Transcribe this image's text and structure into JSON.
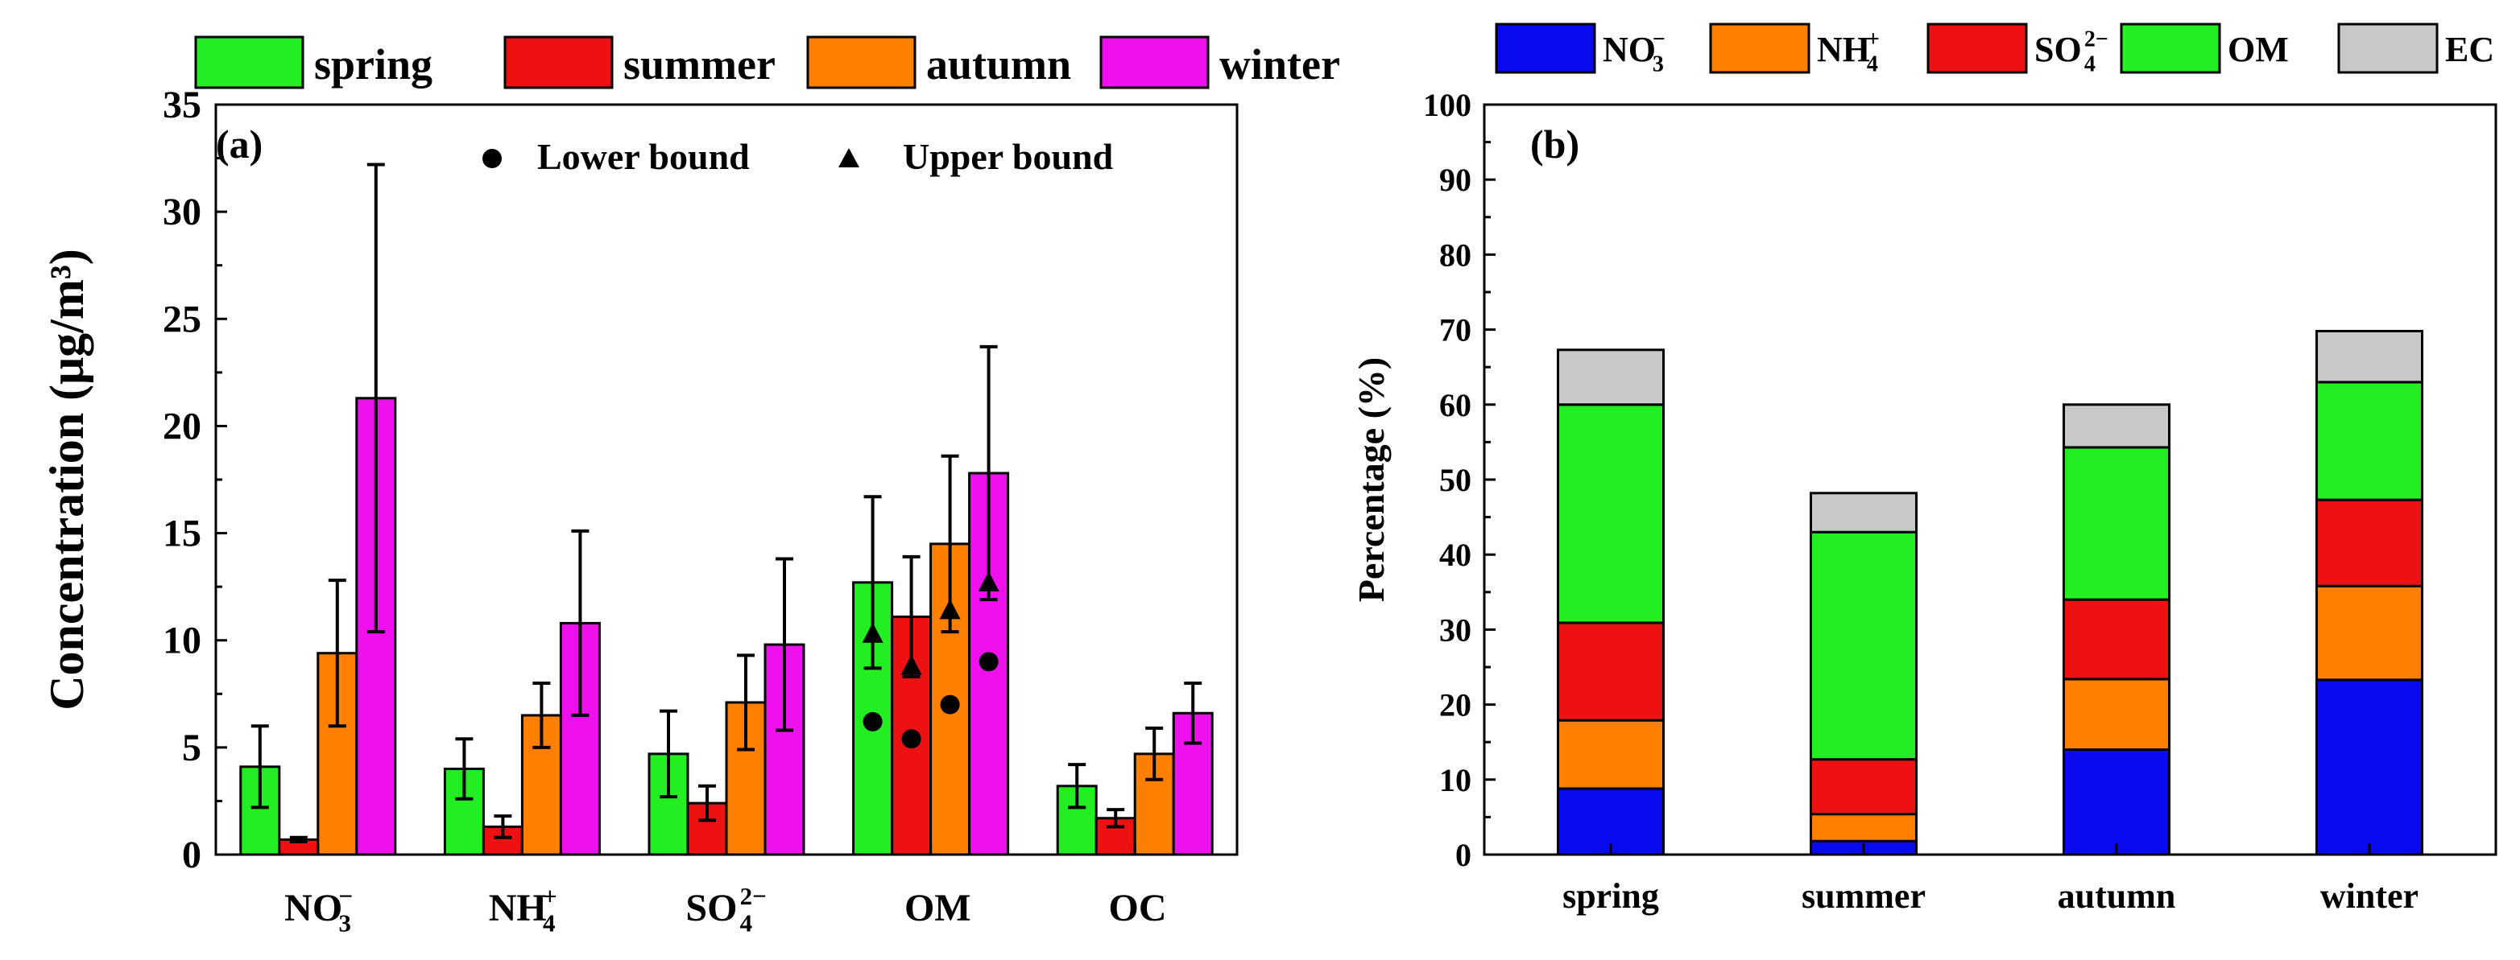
{
  "chart_data": [
    {
      "panel": "(a)",
      "type": "bar",
      "ylabel": "Concentration",
      "ylabel_unit": "(μg/m³)",
      "ylim": [
        0,
        35
      ],
      "yticks": [
        "0",
        "5",
        "10",
        "15",
        "20",
        "25",
        "30",
        "35"
      ],
      "ytick_values": [
        0,
        5,
        10,
        15,
        20,
        25,
        30,
        35
      ],
      "categories": [
        {
          "base": "NO",
          "sub": "3",
          "sup": "−"
        },
        {
          "base": "NH",
          "sub": "4",
          "sup": "+"
        },
        {
          "base": "SO",
          "sub": "4",
          "sup": "2−"
        },
        {
          "base": "OM",
          "sub": "",
          "sup": ""
        },
        {
          "base": "OC",
          "sub": "",
          "sup": ""
        }
      ],
      "series": [
        {
          "name": "spring",
          "color": "#22ee22",
          "values": [
            4.1,
            4.0,
            4.7,
            12.7,
            3.2
          ],
          "errors": [
            1.9,
            1.4,
            2.0,
            4.0,
            1.0
          ]
        },
        {
          "name": "summer",
          "color": "#ee1111",
          "values": [
            0.7,
            1.3,
            2.4,
            11.1,
            1.7
          ],
          "errors": [
            0.1,
            0.5,
            0.8,
            2.8,
            0.4
          ]
        },
        {
          "name": "autumn",
          "color": "#ff8000",
          "values": [
            9.4,
            6.5,
            7.1,
            14.5,
            4.7
          ],
          "errors": [
            3.4,
            1.5,
            2.2,
            4.1,
            1.2
          ]
        },
        {
          "name": "winter",
          "color": "#ee11ee",
          "values": [
            21.3,
            10.8,
            9.8,
            17.8,
            6.6
          ],
          "errors": [
            10.9,
            4.3,
            4.0,
            5.9,
            1.4
          ]
        }
      ],
      "bounds": {
        "lower": {
          "label": "Lower bound",
          "category": "OM",
          "values": [
            6.2,
            5.4,
            7.0,
            9.0
          ]
        },
        "upper": {
          "label": "Upper bound",
          "category": "OM",
          "values": [
            10.3,
            8.8,
            11.4,
            12.7
          ]
        }
      },
      "legend_position": "top"
    },
    {
      "panel": "(b)",
      "type": "stacked-bar",
      "ylabel": "Percentage (%)",
      "ylim": [
        0,
        100
      ],
      "yticks": [
        "0",
        "10",
        "20",
        "30",
        "40",
        "50",
        "60",
        "70",
        "80",
        "90",
        "100"
      ],
      "ytick_values": [
        0,
        10,
        20,
        30,
        40,
        50,
        60,
        70,
        80,
        90,
        100
      ],
      "categories": [
        "spring",
        "summer",
        "autumn",
        "winter"
      ],
      "series": [
        {
          "name": {
            "base": "NO",
            "sub": "3",
            "sup": "−"
          },
          "color": "#0a0aee",
          "values": [
            8.8,
            1.8,
            14.0,
            23.3
          ]
        },
        {
          "name": {
            "base": "NH",
            "sub": "4",
            "sup": "+"
          },
          "color": "#ff8000",
          "values": [
            9.1,
            3.6,
            9.4,
            12.5
          ]
        },
        {
          "name": {
            "base": "SO",
            "sub": "4",
            "sup": "2−"
          },
          "color": "#ee1111",
          "values": [
            13.0,
            7.3,
            10.6,
            11.5
          ]
        },
        {
          "name": {
            "base": "OM",
            "sub": "",
            "sup": ""
          },
          "color": "#22ee22",
          "values": [
            29.1,
            30.3,
            20.3,
            15.7
          ]
        },
        {
          "name": {
            "base": "EC",
            "sub": "",
            "sup": ""
          },
          "color": "#c8c8c8",
          "values": [
            7.3,
            5.2,
            5.7,
            6.8
          ]
        }
      ],
      "legend_position": "top"
    }
  ]
}
